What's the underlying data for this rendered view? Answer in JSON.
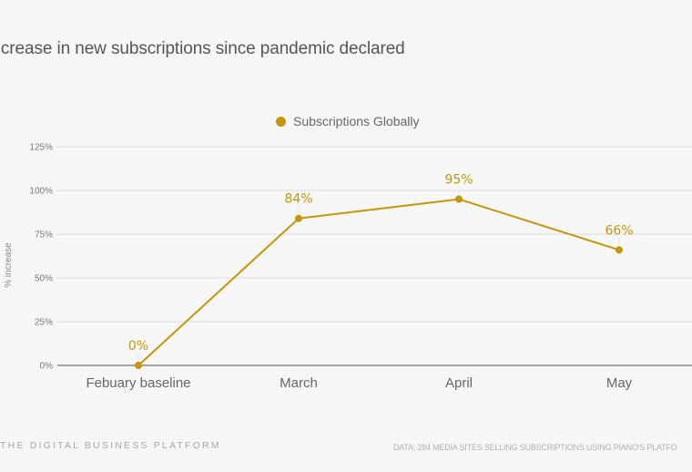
{
  "title": "ent increase in new subscriptions since pandemic declared",
  "footer": {
    "brand": "THE DIGITAL BUSINESS PLATFORM",
    "source": "DATA: 284 MEDIA SITES SELLING SUBSCRIPTIONS USING PIANO'S PLATFO"
  },
  "colors": {
    "series": "#c4960c",
    "grid": "#dddddd",
    "baseline": "#888888",
    "tick_text": "#777777",
    "category_text": "#666666"
  },
  "chart_data": {
    "type": "line",
    "title": "ent increase in new subscriptions since pandemic declared",
    "xlabel": "",
    "ylabel": "% increase",
    "categories": [
      "Febuary baseline",
      "March",
      "April",
      "May"
    ],
    "series": [
      {
        "name": "Subscriptions Globally",
        "values": [
          0,
          84,
          95,
          66
        ],
        "labels": [
          "0%",
          "84%",
          "95%",
          "66%"
        ]
      }
    ],
    "yticks": [
      0,
      25,
      50,
      75,
      100,
      125
    ],
    "ytick_labels": [
      "0%",
      "25%",
      "50%",
      "75%",
      "100%",
      "125%"
    ],
    "ylim": [
      0,
      125
    ],
    "grid": true,
    "legend": "top-center"
  }
}
